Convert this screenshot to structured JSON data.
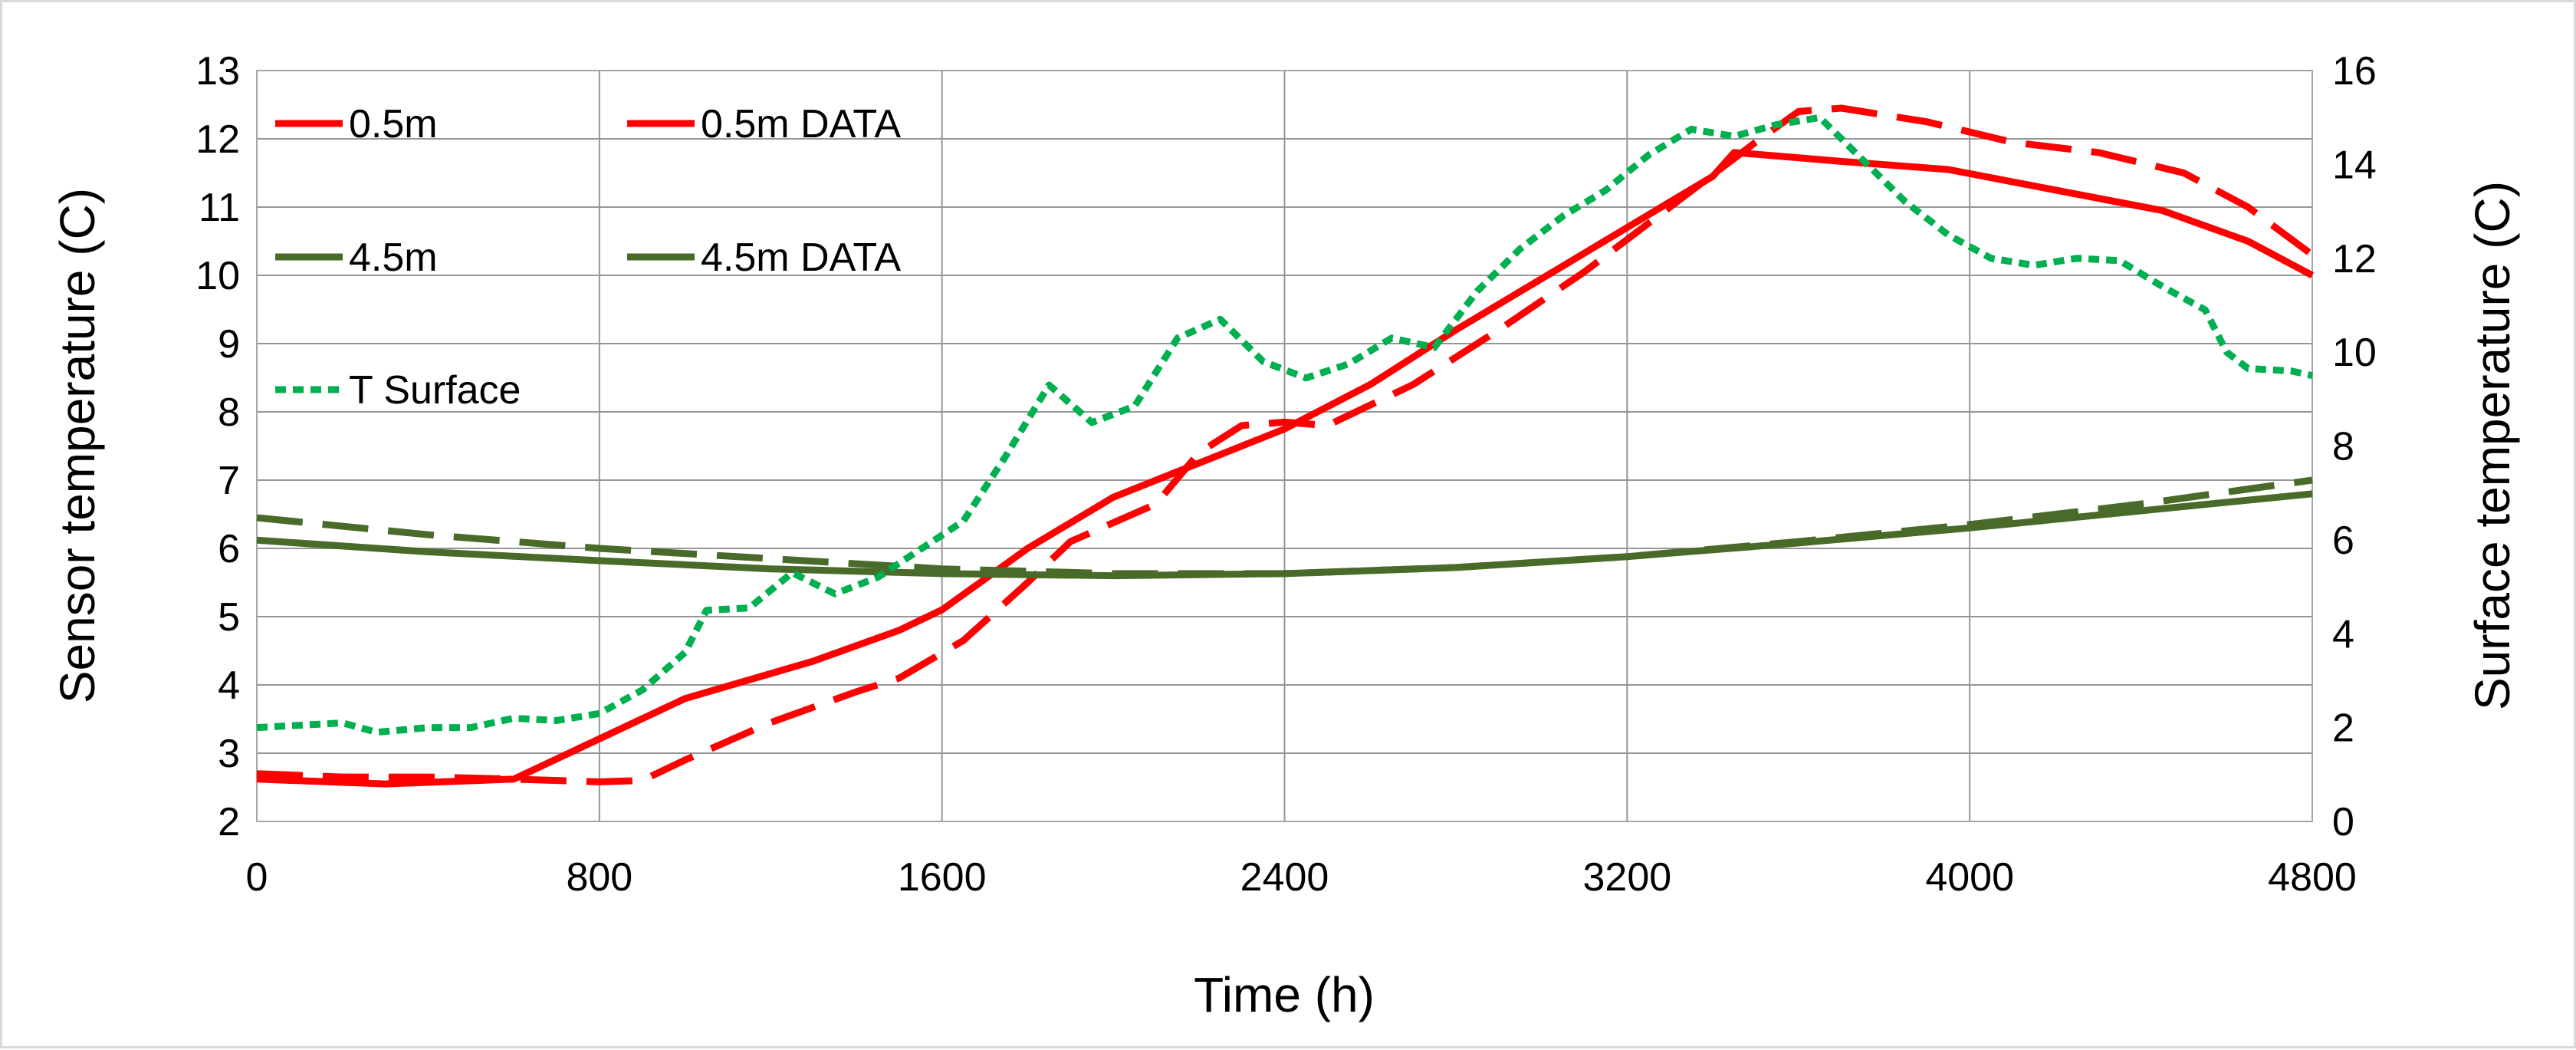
{
  "chart_data": {
    "type": "line",
    "title": "",
    "xlabel": "Time (h)",
    "ylabel": "Sensor temperature (C)",
    "y2label": "Surface temperature (C)",
    "xlim": [
      0,
      4800
    ],
    "ylim": [
      2,
      13
    ],
    "y2lim": [
      0,
      16
    ],
    "x_ticks": [
      0,
      800,
      1600,
      2400,
      3200,
      4000,
      4800
    ],
    "y_ticks": [
      2,
      3,
      4,
      5,
      6,
      7,
      8,
      9,
      10,
      11,
      12,
      13
    ],
    "y2_ticks": [
      0,
      2,
      4,
      6,
      8,
      10,
      12,
      14,
      16
    ],
    "grid": true,
    "legend_position": "top-left",
    "series": [
      {
        "name": "0.5m",
        "axis": "left",
        "color": "#ff0000",
        "style": "solid",
        "points": [
          [
            0,
            2.62
          ],
          [
            300,
            2.55
          ],
          [
            600,
            2.62
          ],
          [
            1000,
            3.8
          ],
          [
            1300,
            4.35
          ],
          [
            1500,
            4.8
          ],
          [
            1600,
            5.1
          ],
          [
            1800,
            6.0
          ],
          [
            2000,
            6.75
          ],
          [
            2200,
            7.25
          ],
          [
            2400,
            7.75
          ],
          [
            2600,
            8.4
          ],
          [
            2800,
            9.2
          ],
          [
            3000,
            9.95
          ],
          [
            3200,
            10.7
          ],
          [
            3400,
            11.45
          ],
          [
            3450,
            11.8
          ],
          [
            3700,
            11.67
          ],
          [
            3950,
            11.55
          ],
          [
            4200,
            11.25
          ],
          [
            4450,
            10.95
          ],
          [
            4650,
            10.5
          ],
          [
            4800,
            10.0
          ]
        ]
      },
      {
        "name": "0.5m DATA",
        "axis": "left",
        "color": "#ff0000",
        "style": "dashed",
        "points": [
          [
            0,
            2.7
          ],
          [
            200,
            2.65
          ],
          [
            400,
            2.65
          ],
          [
            600,
            2.62
          ],
          [
            800,
            2.58
          ],
          [
            900,
            2.6
          ],
          [
            1000,
            2.9
          ],
          [
            1200,
            3.45
          ],
          [
            1400,
            3.9
          ],
          [
            1500,
            4.1
          ],
          [
            1650,
            4.65
          ],
          [
            1800,
            5.5
          ],
          [
            1900,
            6.1
          ],
          [
            2100,
            6.65
          ],
          [
            2200,
            7.4
          ],
          [
            2300,
            7.8
          ],
          [
            2400,
            7.85
          ],
          [
            2500,
            7.8
          ],
          [
            2700,
            8.4
          ],
          [
            2900,
            9.2
          ],
          [
            3100,
            10.05
          ],
          [
            3300,
            11.0
          ],
          [
            3500,
            11.95
          ],
          [
            3600,
            12.4
          ],
          [
            3700,
            12.45
          ],
          [
            3900,
            12.25
          ],
          [
            4100,
            11.95
          ],
          [
            4300,
            11.8
          ],
          [
            4500,
            11.5
          ],
          [
            4650,
            11.0
          ],
          [
            4800,
            10.3
          ]
        ]
      },
      {
        "name": "4.5m",
        "axis": "left",
        "color": "#4a6a2a",
        "style": "solid",
        "points": [
          [
            0,
            6.12
          ],
          [
            400,
            5.95
          ],
          [
            800,
            5.82
          ],
          [
            1200,
            5.7
          ],
          [
            1600,
            5.63
          ],
          [
            2000,
            5.6
          ],
          [
            2400,
            5.63
          ],
          [
            2800,
            5.72
          ],
          [
            3200,
            5.88
          ],
          [
            3600,
            6.08
          ],
          [
            4000,
            6.3
          ],
          [
            4400,
            6.55
          ],
          [
            4800,
            6.8
          ]
        ]
      },
      {
        "name": "4.5m DATA",
        "axis": "left",
        "color": "#4a6a2a",
        "style": "dashed",
        "points": [
          [
            0,
            6.45
          ],
          [
            400,
            6.2
          ],
          [
            800,
            6.0
          ],
          [
            1200,
            5.85
          ],
          [
            1600,
            5.7
          ],
          [
            2000,
            5.63
          ],
          [
            2400,
            5.63
          ],
          [
            2800,
            5.72
          ],
          [
            3200,
            5.88
          ],
          [
            3600,
            6.1
          ],
          [
            4000,
            6.35
          ],
          [
            4400,
            6.65
          ],
          [
            4800,
            7.0
          ]
        ]
      },
      {
        "name": "T Surface",
        "axis": "right",
        "color": "#00b050",
        "style": "dotted",
        "points": [
          [
            0,
            2.0
          ],
          [
            100,
            2.05
          ],
          [
            200,
            2.1
          ],
          [
            280,
            1.9
          ],
          [
            400,
            2.0
          ],
          [
            500,
            2.0
          ],
          [
            600,
            2.2
          ],
          [
            700,
            2.15
          ],
          [
            800,
            2.3
          ],
          [
            900,
            2.8
          ],
          [
            1000,
            3.6
          ],
          [
            1050,
            4.5
          ],
          [
            1150,
            4.55
          ],
          [
            1250,
            5.3
          ],
          [
            1350,
            4.85
          ],
          [
            1450,
            5.2
          ],
          [
            1550,
            5.8
          ],
          [
            1650,
            6.4
          ],
          [
            1750,
            7.8
          ],
          [
            1850,
            9.3
          ],
          [
            1950,
            8.5
          ],
          [
            2050,
            8.85
          ],
          [
            2150,
            10.3
          ],
          [
            2250,
            10.7
          ],
          [
            2350,
            9.8
          ],
          [
            2450,
            9.45
          ],
          [
            2550,
            9.75
          ],
          [
            2650,
            10.3
          ],
          [
            2750,
            10.1
          ],
          [
            2850,
            11.3
          ],
          [
            2950,
            12.2
          ],
          [
            3050,
            12.9
          ],
          [
            3150,
            13.45
          ],
          [
            3250,
            14.2
          ],
          [
            3350,
            14.75
          ],
          [
            3450,
            14.6
          ],
          [
            3550,
            14.85
          ],
          [
            3650,
            15.0
          ],
          [
            3750,
            14.1
          ],
          [
            3850,
            13.2
          ],
          [
            3950,
            12.5
          ],
          [
            4050,
            12.0
          ],
          [
            4150,
            11.85
          ],
          [
            4250,
            12.0
          ],
          [
            4350,
            11.95
          ],
          [
            4450,
            11.4
          ],
          [
            4550,
            10.9
          ],
          [
            4600,
            10.0
          ],
          [
            4650,
            9.65
          ],
          [
            4750,
            9.6
          ],
          [
            4800,
            9.5
          ]
        ]
      }
    ]
  }
}
